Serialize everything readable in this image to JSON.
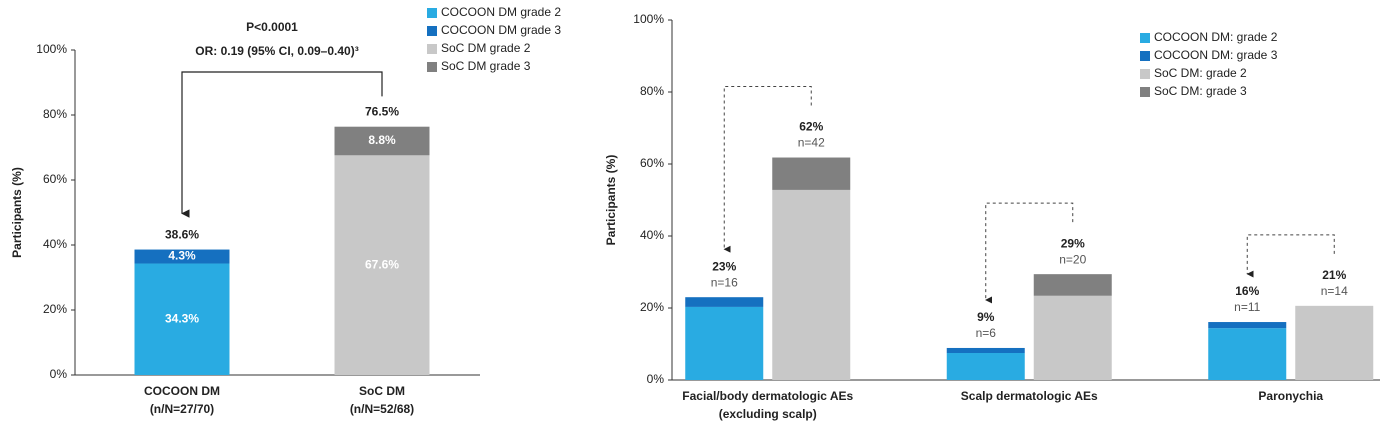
{
  "chart_data": [
    {
      "type": "bar",
      "stacked": true,
      "annotation": [
        "P<0.0001",
        "OR: 0.19 (95% CI, 0.09–0.40)³"
      ],
      "ylabel": "Participants (%)",
      "categories": [
        "COCOON DM",
        "SoC DM"
      ],
      "category_notes": [
        "(n/N=27/70)",
        "(n/N=52/68)"
      ],
      "series": [
        {
          "name": "COCOON DM grade 2",
          "color": "#29abe2",
          "values": [
            34.3,
            null
          ],
          "value_labels": [
            "34.3%",
            null
          ]
        },
        {
          "name": "COCOON DM grade 3",
          "color": "#1570c0",
          "values": [
            4.3,
            null
          ],
          "value_labels": [
            "4.3%",
            null
          ]
        },
        {
          "name": "SoC DM grade 2",
          "color": "#c8c8c8",
          "values": [
            null,
            67.6
          ],
          "value_labels": [
            null,
            "67.6%"
          ]
        },
        {
          "name": "SoC DM grade 3",
          "color": "#808080",
          "values": [
            null,
            8.8
          ],
          "value_labels": [
            null,
            "8.8%"
          ]
        }
      ],
      "totals": [
        38.6,
        76.5
      ],
      "total_labels": [
        "38.6%",
        "76.5%"
      ],
      "ylim": [
        0,
        100
      ],
      "yticks": [
        {
          "value": 0,
          "label": "0%"
        },
        {
          "value": 20,
          "label": "20%"
        },
        {
          "value": 40,
          "label": "40%"
        },
        {
          "value": 60,
          "label": "60%"
        },
        {
          "value": 80,
          "label": "80%"
        },
        {
          "value": 100,
          "label": "100%"
        }
      ],
      "legend": "upper right"
    },
    {
      "type": "bar",
      "stacked": true,
      "grouped": true,
      "ylabel": "Participants (%)",
      "categories": [
        "Facial/body dermatologic AEs",
        "Scalp dermatologic AEs",
        "Paronychia"
      ],
      "category_notes": [
        "(excluding scalp)",
        null,
        null
      ],
      "series": [
        {
          "name": "COCOON DM: grade 2",
          "color": "#29abe2",
          "values": [
            20.3,
            7.5,
            14.4
          ]
        },
        {
          "name": "COCOON DM: grade 3",
          "color": "#1570c0",
          "values": [
            2.7,
            1.4,
            1.7
          ]
        },
        {
          "name": "SoC DM: grade 2",
          "color": "#c8c8c8",
          "values": [
            52.8,
            23.4,
            20.6
          ]
        },
        {
          "name": "SoC DM: grade 3",
          "color": "#808080",
          "values": [
            9.0,
            6.0,
            0
          ]
        }
      ],
      "bar_totals": [
        [
          23,
          8.9,
          16.1
        ],
        [
          61.8,
          29.4,
          20.6
        ]
      ],
      "bar_total_labels": [
        [
          "23%",
          "9%",
          "16%"
        ],
        [
          "62%",
          "29%",
          "21%"
        ]
      ],
      "bar_n_labels": [
        [
          "n=16",
          "n=6",
          "n=11"
        ],
        [
          "n=42",
          "n=20",
          "n=14"
        ]
      ],
      "ylim": [
        0,
        100
      ],
      "yticks": [
        {
          "value": 0,
          "label": "0%"
        },
        {
          "value": 20,
          "label": "20%"
        },
        {
          "value": 40,
          "label": "40%"
        },
        {
          "value": 60,
          "label": "60%"
        },
        {
          "value": 80,
          "label": "80%"
        },
        {
          "value": 100,
          "label": "100%"
        }
      ],
      "legend": "upper right"
    }
  ]
}
